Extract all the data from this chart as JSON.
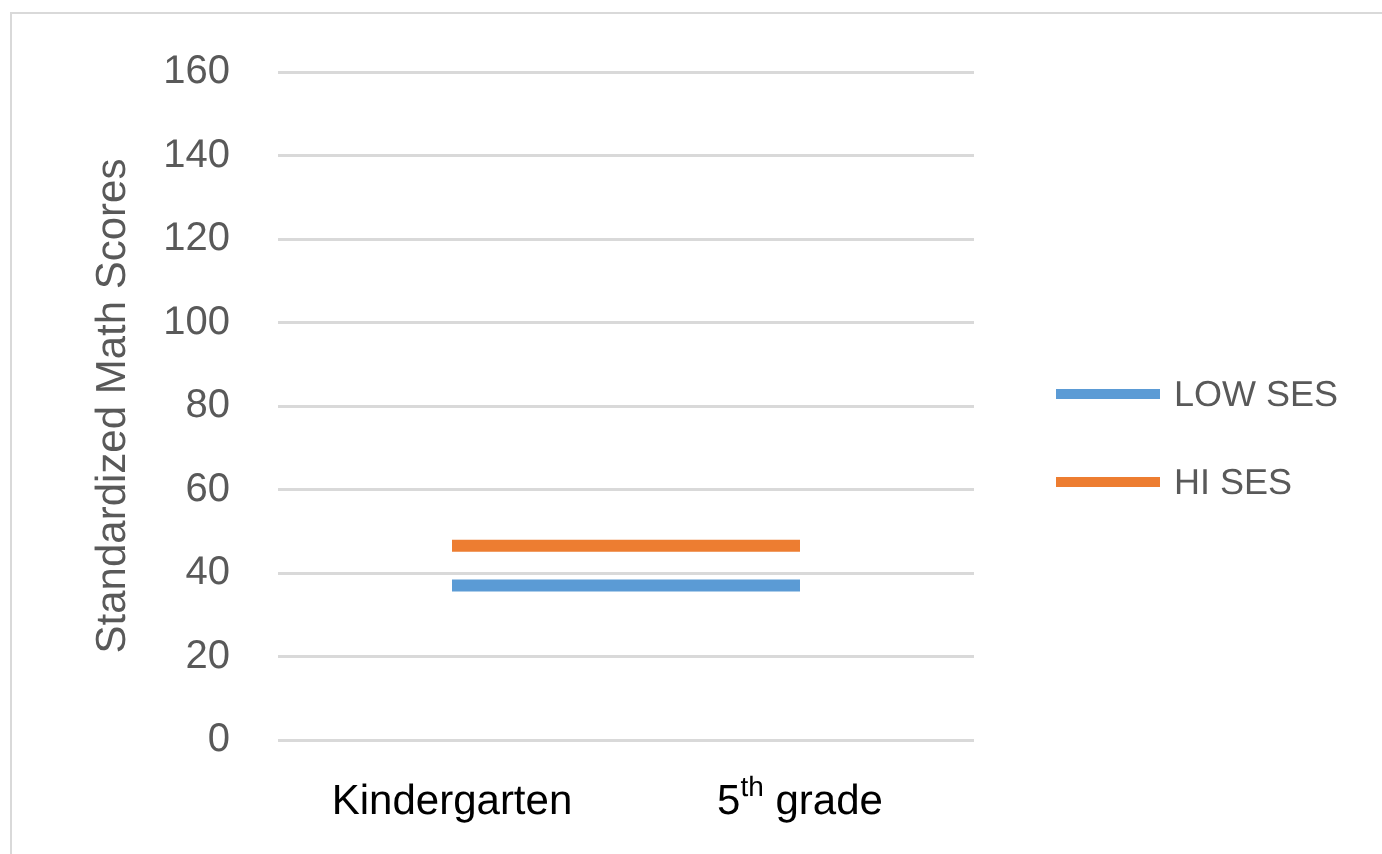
{
  "chart_data": {
    "type": "line",
    "ylabel": "Standardized Math Scores",
    "categories": [
      "Kindergarten",
      "5$^{th}$ grade"
    ],
    "series": [
      {
        "name": "LOW SES",
        "color": "#5b9bd5",
        "values": [
          37,
          37
        ]
      },
      {
        "name": "HI SES",
        "color": "#ed7d31",
        "values": [
          46.5,
          46.5
        ]
      }
    ],
    "ylim": [
      0,
      160
    ],
    "yticks": [
      0,
      20,
      40,
      60,
      80,
      100,
      120,
      140,
      160
    ],
    "grid": "y",
    "legend": "right",
    "line_style": "solid"
  }
}
